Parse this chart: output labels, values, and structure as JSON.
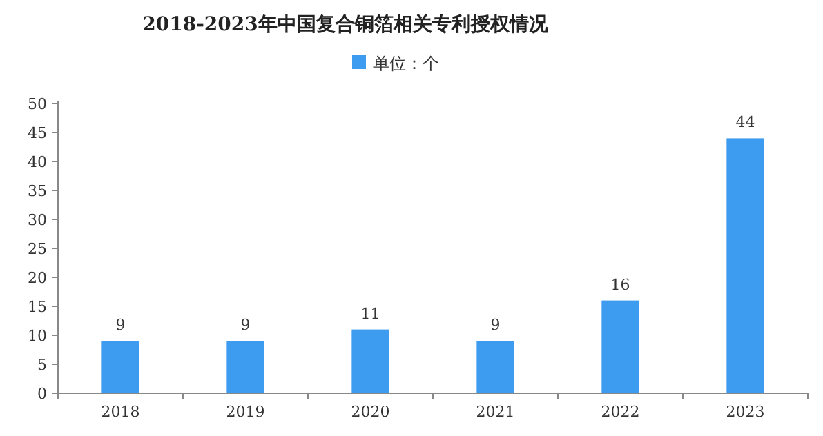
{
  "chart_data": {
    "type": "bar",
    "title": "2018-2023年中国复合铜箔相关专利授权情况",
    "categories": [
      "2018",
      "2019",
      "2020",
      "2021",
      "2022",
      "2023"
    ],
    "series": [
      {
        "name": "单位：个",
        "color": "#3d9cf0",
        "values": [
          9,
          9,
          11,
          9,
          16,
          44
        ]
      }
    ],
    "ylim": [
      0,
      50
    ],
    "yticks": [
      0,
      5,
      10,
      15,
      20,
      25,
      30,
      35,
      40,
      45,
      50
    ],
    "data_labels": true,
    "legend": "top",
    "grid": false
  }
}
